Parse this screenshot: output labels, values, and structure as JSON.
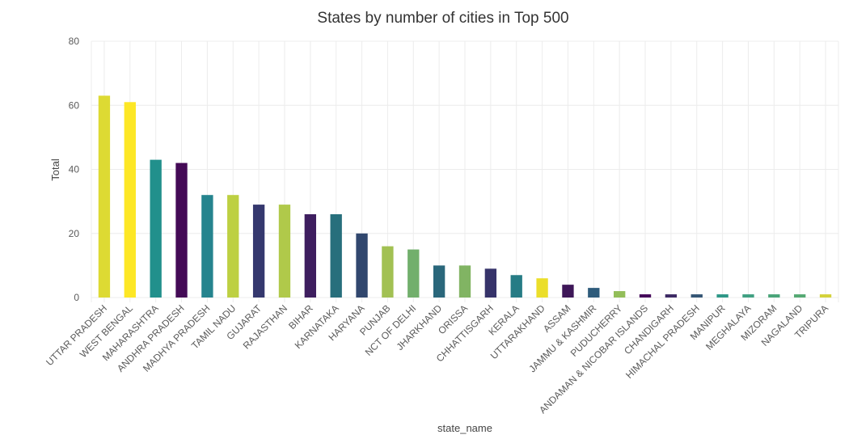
{
  "chart_data": {
    "type": "bar",
    "title": "States by number of cities in Top 500",
    "xlabel": "state_name",
    "ylabel": "Total",
    "ylim": [
      0,
      80
    ],
    "yticks": [
      0,
      20,
      40,
      60,
      80
    ],
    "ytick_labels": [
      "0",
      "20",
      "40",
      "60",
      "80"
    ],
    "grid": true,
    "legend": "none",
    "categories": [
      "UTTAR PRADESH",
      "WEST BENGAL",
      "MAHARASHTRA",
      "ANDHRA PRADESH",
      "MADHYA PRADESH",
      "TAMIL NADU",
      "GUJARAT",
      "RAJASTHAN",
      "BIHAR",
      "KARNATAKA",
      "HARYANA",
      "PUNJAB",
      "NCT OF DELHI",
      "JHARKHAND",
      "ORISSA",
      "CHHATTISGARH",
      "KERALA",
      "UTTARAKHAND",
      "ASSAM",
      "JAMMU & KASHMIR",
      "PUDUCHERRY",
      "ANDAMAN & NICOBAR ISLANDS",
      "CHANDIGARH",
      "HIMACHAL PRADESH",
      "MANIPUR",
      "MEGHALAYA",
      "MIZORAM",
      "NAGALAND",
      "TRIPURA"
    ],
    "values": [
      63,
      61,
      43,
      42,
      32,
      32,
      29,
      29,
      26,
      26,
      20,
      16,
      15,
      10,
      10,
      9,
      7,
      6,
      4,
      3,
      2,
      1,
      1,
      1,
      1,
      1,
      1,
      1,
      1
    ],
    "colors": [
      "#DDDA33",
      "#FDE725",
      "#21908C",
      "#440A56",
      "#25848E",
      "#BDD042",
      "#35386E",
      "#B0C94A",
      "#3E1E5F",
      "#276F7C",
      "#31476E",
      "#A2C153",
      "#72AF6C",
      "#2A677B",
      "#81B463",
      "#36336A",
      "#267C85",
      "#EBDE2A",
      "#3E1758",
      "#2E5B7B",
      "#93BE59",
      "#45065A",
      "#3D2A64",
      "#355675",
      "#2E9787",
      "#40A082",
      "#4AA579",
      "#55A973",
      "#D4D23B"
    ]
  }
}
